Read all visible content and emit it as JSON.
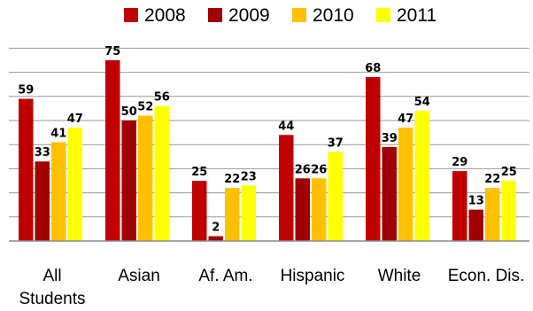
{
  "chart_data": {
    "type": "bar",
    "categories": [
      "All Students",
      "Asian",
      "Af. Am.",
      "Hispanic",
      "White",
      "Econ. Dis."
    ],
    "series": [
      {
        "name": "2008",
        "color": "#c00000",
        "values": [
          59,
          75,
          25,
          44,
          68,
          29
        ]
      },
      {
        "name": "2009",
        "color": "#a00000",
        "values": [
          33,
          50,
          2,
          26,
          39,
          13
        ]
      },
      {
        "name": "2010",
        "color": "#ffc000",
        "values": [
          41,
          52,
          22,
          26,
          47,
          22
        ]
      },
      {
        "name": "2011",
        "color": "#ffff00",
        "values": [
          47,
          56,
          23,
          37,
          54,
          25
        ]
      }
    ],
    "ylim": [
      0,
      80
    ],
    "grid": true,
    "legend_position": "top-center",
    "show_data_labels": true
  }
}
